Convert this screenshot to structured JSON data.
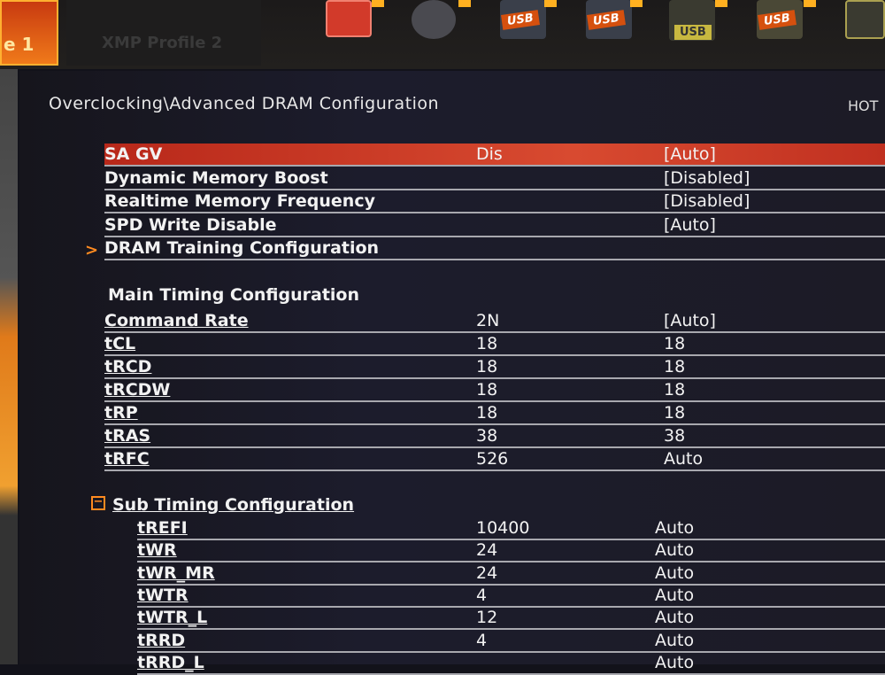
{
  "top": {
    "profile1_label": "e 1",
    "profile2_label": "XMP Profile 2",
    "boot_usb_label": "USB"
  },
  "breadcrumb": "Overclocking\\Advanced DRAM Configuration",
  "hotkey_label": "HOT",
  "settings": [
    {
      "name": "SA GV",
      "value": "Dis",
      "setting": "[Auto]",
      "selected": true
    },
    {
      "name": "Dynamic Memory Boost",
      "value": "",
      "setting": "[Disabled]"
    },
    {
      "name": "Realtime Memory Frequency",
      "value": "",
      "setting": "[Disabled]"
    },
    {
      "name": "SPD Write Disable",
      "value": "",
      "setting": "[Auto]"
    },
    {
      "name": "DRAM Training Configuration",
      "value": "",
      "setting": "",
      "submenu": true
    }
  ],
  "main_timing": {
    "title": "Main Timing Configuration",
    "rows": [
      {
        "name": "Command Rate",
        "value": "2N",
        "setting": "[Auto]"
      },
      {
        "name": "tCL",
        "value": "18",
        "setting": "18"
      },
      {
        "name": "tRCD",
        "value": "18",
        "setting": "18"
      },
      {
        "name": "tRCDW",
        "value": "18",
        "setting": "18"
      },
      {
        "name": "tRP",
        "value": "18",
        "setting": "18"
      },
      {
        "name": "tRAS",
        "value": "38",
        "setting": "38"
      },
      {
        "name": "tRFC",
        "value": "526",
        "setting": "Auto"
      }
    ]
  },
  "sub_timing": {
    "title": "Sub Timing Configuration",
    "rows": [
      {
        "name": "tREFI",
        "value": "10400",
        "setting": "Auto"
      },
      {
        "name": "tWR",
        "value": "24",
        "setting": "Auto"
      },
      {
        "name": "tWR_MR",
        "value": "24",
        "setting": "Auto"
      },
      {
        "name": "tWTR",
        "value": "4",
        "setting": "Auto"
      },
      {
        "name": "tWTR_L",
        "value": "12",
        "setting": "Auto"
      },
      {
        "name": "tRRD",
        "value": "4",
        "setting": "Auto"
      },
      {
        "name": "tRRD_L",
        "value": "",
        "setting": "Auto"
      }
    ]
  },
  "colors": {
    "selected": "#c8301e",
    "accent": "#ff8a20"
  }
}
